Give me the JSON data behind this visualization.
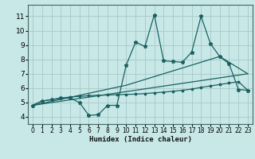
{
  "xlabel": "Humidex (Indice chaleur)",
  "xlim": [
    -0.5,
    23.5
  ],
  "ylim": [
    3.5,
    11.8
  ],
  "xticks": [
    0,
    1,
    2,
    3,
    4,
    5,
    6,
    7,
    8,
    9,
    10,
    11,
    12,
    13,
    14,
    15,
    16,
    17,
    18,
    19,
    20,
    21,
    22,
    23
  ],
  "yticks": [
    4,
    5,
    6,
    7,
    8,
    9,
    10,
    11
  ],
  "bg_color": "#c8e8e8",
  "grid_color": "#a8c8c8",
  "line_color": "#1a6060",
  "line1_x": [
    0,
    1,
    2,
    3,
    4,
    5,
    6,
    7,
    8,
    9,
    10,
    11,
    12,
    13,
    14,
    15,
    16,
    17,
    18,
    19,
    20,
    21,
    22,
    23
  ],
  "line1_y": [
    4.8,
    5.1,
    5.2,
    5.3,
    5.3,
    5.0,
    4.1,
    4.15,
    4.8,
    4.8,
    7.6,
    9.2,
    8.9,
    11.1,
    7.9,
    7.85,
    7.8,
    8.5,
    11.0,
    9.1,
    8.2,
    7.7,
    5.9,
    5.85
  ],
  "line2_x": [
    0,
    1,
    2,
    3,
    4,
    5,
    6,
    7,
    8,
    9,
    10,
    11,
    12,
    13,
    14,
    15,
    16,
    17,
    18,
    19,
    20,
    21,
    22,
    23
  ],
  "line2_y": [
    4.8,
    5.1,
    5.2,
    5.3,
    5.38,
    5.42,
    5.47,
    5.5,
    5.52,
    5.54,
    5.56,
    5.58,
    5.62,
    5.67,
    5.72,
    5.78,
    5.85,
    5.93,
    6.05,
    6.15,
    6.25,
    6.35,
    6.45,
    5.85
  ],
  "regline1_x": [
    0,
    23
  ],
  "regline1_y": [
    4.8,
    7.0
  ],
  "regline2_x": [
    0,
    10,
    20,
    23
  ],
  "regline2_y": [
    4.8,
    6.2,
    8.2,
    7.0
  ],
  "xlabel_fontsize": 6.5,
  "tick_fontsize_x": 5.5,
  "tick_fontsize_y": 6.5
}
